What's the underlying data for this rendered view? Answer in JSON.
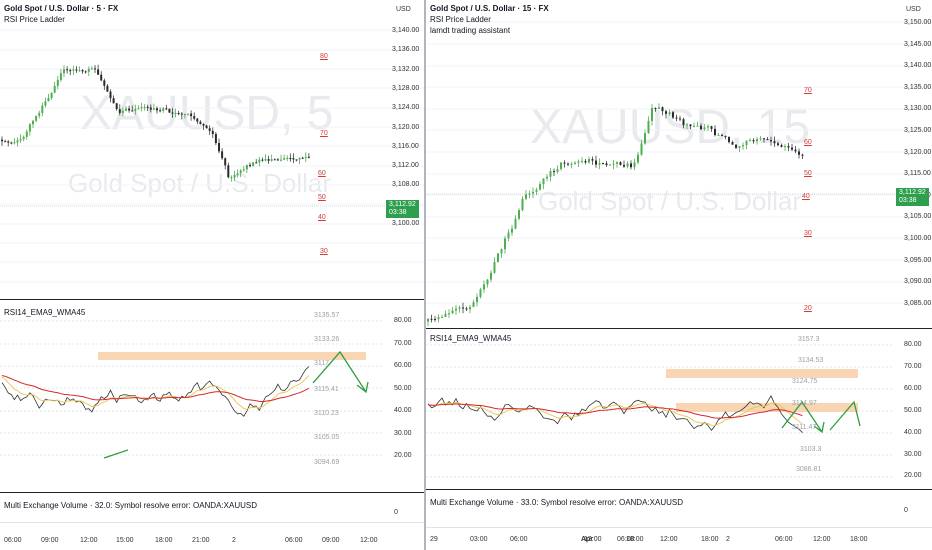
{
  "left": {
    "title": "Gold Spot / U.S. Dollar · 5 · FX",
    "indicator1": "RSI Price Ladder",
    "watermark_symbol": "XAUUSD, 5",
    "watermark_desc": "Gold Spot / U.S. Dollar",
    "currency": "USD",
    "price_ticks": [
      "3,140.00",
      "3,136.00",
      "3,132.00",
      "3,128.00",
      "3,124.00",
      "3,120.00",
      "3,116.00",
      "3,112.00",
      "3,108.00",
      "3,104.00",
      "3,100.00"
    ],
    "price_badge": "3,112.92",
    "price_countdown": "03:38",
    "ladder": [
      "80",
      "70",
      "60",
      "50",
      "40",
      "30"
    ],
    "rsi_title": "RSI14_EMA9_WMA45",
    "rsi_ticks": [
      "80.00",
      "70.00",
      "60.00",
      "50.00",
      "40.00",
      "30.00",
      "20.00"
    ],
    "levels": [
      "3135.57",
      "3133.26",
      "3117.",
      "3115.41",
      "3110.23",
      "3105.05",
      "3094.69"
    ],
    "volume_text": "Multi Exchange Volume · 32.0: Symbol resolve error: OANDA:XAUUSD",
    "volume_zero": "0",
    "time_ticks": [
      "06:00",
      "09:00",
      "12:00",
      "15:00",
      "18:00",
      "21:00",
      "2",
      "06:00",
      "09:00",
      "12:00"
    ]
  },
  "right": {
    "title": "Gold Spot / U.S. Dollar · 15 · FX",
    "indicator1": "RSI Price Ladder",
    "indicator2": "lamdt trading assistant",
    "watermark_symbol": "XAUUSD, 15",
    "watermark_desc": "Gold Spot / U.S. Dollar",
    "currency": "USD",
    "price_ticks": [
      "3,150.00",
      "3,145.00",
      "3,140.00",
      "3,135.00",
      "3,130.00",
      "3,125.00",
      "3,120.00",
      "3,115.00",
      "3,110.00",
      "3,105.00",
      "3,100.00",
      "3,095.00",
      "3,090.00",
      "3,085.00"
    ],
    "price_badge": "3,112.92",
    "price_countdown": "03:38",
    "ladder": [
      "70",
      "60",
      "50",
      "40",
      "30",
      "20"
    ],
    "rsi_title": "RSI14_EMA9_WMA45",
    "rsi_ticks": [
      "80.00",
      "70.00",
      "60.00",
      "50.00",
      "40.00",
      "30.00",
      "20.00"
    ],
    "levels": [
      "3157.3",
      "3134.53",
      "3124.75",
      "3114.97",
      "3111.47",
      "3103.3",
      "3086.81"
    ],
    "volume_text": "Multi Exchange Volume · 33.0: Symbol resolve error: OANDA:XAUUSD",
    "volume_zero": "0",
    "time_ticks": [
      "29",
      "03:00",
      "06:00",
      "12:00",
      "18:00",
      "Apr",
      "06:00",
      "12:00",
      "18:00",
      "2",
      "06:00",
      "12:00",
      "18:00"
    ]
  }
}
